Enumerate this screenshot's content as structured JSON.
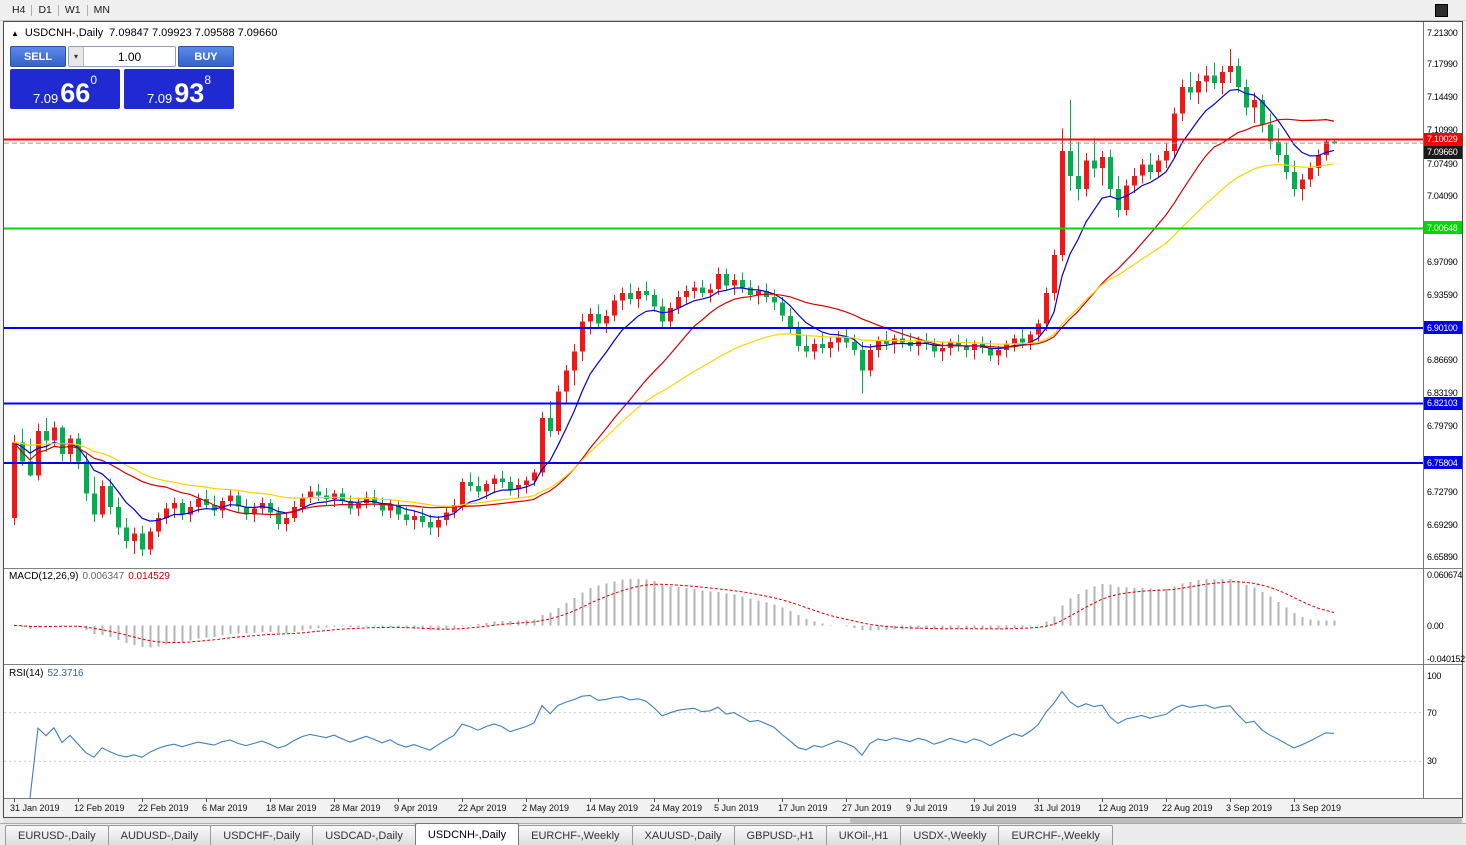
{
  "toolbar": {
    "timeframes": [
      "H4",
      "D1",
      "W1",
      "MN"
    ]
  },
  "chart": {
    "arrow": "▲",
    "title_symbol": "USDCNH-,Daily",
    "title_ohlc": "7.09847 7.09923 7.09588 7.09660"
  },
  "trade_panel": {
    "sell_label": "SELL",
    "buy_label": "BUY",
    "volume": "1.00",
    "dropdown_icon": "▾",
    "sell_price": {
      "small": "7.09",
      "big": "66",
      "sup": "0"
    },
    "buy_price": {
      "small": "7.09",
      "big": "93",
      "sup": "8"
    }
  },
  "price_axis": {
    "ticks": [
      "7.21300",
      "7.17990",
      "7.14490",
      "7.10990",
      "7.07490",
      "7.04090",
      "6.97090",
      "6.93590",
      "6.86690",
      "6.83190",
      "6.79790",
      "6.72790",
      "6.69290",
      "6.65890"
    ]
  },
  "macd_panel": {
    "label": "MACD(12,26,9)",
    "main_value": "0.006347",
    "signal_value": "0.014529",
    "axis_max": "0.060674",
    "axis_zero": "0.00",
    "axis_min": "-0.040152"
  },
  "rsi_panel": {
    "label": "RSI(14)",
    "value": "52.3716",
    "axis": [
      "100",
      "70",
      "30"
    ]
  },
  "date_axis": [
    "31 Jan 2019",
    "12 Feb 2019",
    "22 Feb 2019",
    "6 Mar 2019",
    "18 Mar 2019",
    "28 Mar 2019",
    "9 Apr 2019",
    "22 Apr 2019",
    "2 May 2019",
    "14 May 2019",
    "24 May 2019",
    "5 Jun 2019",
    "17 Jun 2019",
    "27 Jun 2019",
    "9 Jul 2019",
    "19 Jul 2019",
    "31 Jul 2019",
    "12 Aug 2019",
    "22 Aug 2019",
    "3 Sep 2019",
    "13 Sep 2019"
  ],
  "tabs": [
    {
      "label": "EURUSD-,Daily",
      "active": false
    },
    {
      "label": "AUDUSD-,Daily",
      "active": false
    },
    {
      "label": "USDCHF-,Daily",
      "active": false
    },
    {
      "label": "USDCAD-,Daily",
      "active": false
    },
    {
      "label": "USDCNH-,Daily",
      "active": true
    },
    {
      "label": "EURCHF-,Weekly",
      "active": false
    },
    {
      "label": "XAUUSD-,Daily",
      "active": false
    },
    {
      "label": "GBPUSD-,H1",
      "active": false
    },
    {
      "label": "UKOil-,H1",
      "active": false
    },
    {
      "label": "USDX-,Weekly",
      "active": false
    },
    {
      "label": "EURCHF-,Weekly",
      "active": false
    }
  ],
  "chart_data": {
    "type": "candlestick",
    "symbol": "USDCNH-",
    "timeframe": "Daily",
    "last_ohlc": {
      "open": 7.09847,
      "high": 7.09923,
      "low": 7.09588,
      "close": 7.0966
    },
    "y_range": [
      6.6589,
      7.213
    ],
    "style": {
      "up_color": "#f21616",
      "down_color": "#00b050",
      "background": "#ffffff"
    },
    "levels": [
      {
        "price": 7.10029,
        "label": "7.10029",
        "color": "#ff0000"
      },
      {
        "price": 7.00648,
        "label": "7.00648",
        "color": "#00d800"
      },
      {
        "price": 6.901,
        "label": "6.90100",
        "color": "#0000f0"
      },
      {
        "price": 6.82103,
        "label": "6.82103",
        "color": "#0000f0"
      },
      {
        "price": 6.75804,
        "label": "6.75804",
        "color": "#0000f0"
      }
    ],
    "bid_marker": {
      "price": 7.0966,
      "label": "7.09660",
      "box_color": "#1a1a1a"
    },
    "moving_averages": [
      {
        "period": 8,
        "method": "ema",
        "color": "#0000d8"
      },
      {
        "period": 20,
        "method": "sma",
        "color": "#d40000"
      },
      {
        "period": 34,
        "method": "ema",
        "color": "#ffd200"
      }
    ],
    "macd": {
      "fast": 12,
      "slow": 26,
      "signal": 9,
      "current_main": 0.006347,
      "current_signal": 0.014529,
      "hist_color": "#b4b4b4",
      "signal_color": "#e00000",
      "axis": [
        0.060674,
        0,
        -0.040152
      ]
    },
    "rsi": {
      "period": 14,
      "current": 52.3716,
      "color": "#3f7fc1",
      "levels": [
        70,
        30
      ]
    },
    "candles": [
      [
        6.7,
        6.788,
        6.693,
        6.78
      ],
      [
        6.78,
        6.795,
        6.755,
        6.76
      ],
      [
        6.76,
        6.784,
        6.744,
        6.745
      ],
      [
        6.745,
        6.8,
        6.74,
        6.792
      ],
      [
        6.792,
        6.806,
        6.77,
        6.782
      ],
      [
        6.782,
        6.802,
        6.776,
        6.796
      ],
      [
        6.796,
        6.798,
        6.76,
        6.768
      ],
      [
        6.768,
        6.788,
        6.758,
        6.784
      ],
      [
        6.784,
        6.79,
        6.752,
        6.76
      ],
      [
        6.76,
        6.768,
        6.718,
        6.726
      ],
      [
        6.726,
        6.744,
        6.696,
        6.704
      ],
      [
        6.704,
        6.74,
        6.7,
        6.734
      ],
      [
        6.734,
        6.742,
        6.704,
        6.712
      ],
      [
        6.712,
        6.722,
        6.682,
        6.69
      ],
      [
        6.69,
        6.7,
        6.668,
        6.676
      ],
      [
        6.676,
        6.69,
        6.662,
        6.684
      ],
      [
        6.684,
        6.692,
        6.66,
        6.667
      ],
      [
        6.667,
        6.69,
        6.661,
        6.686
      ],
      [
        6.686,
        6.706,
        6.68,
        6.7
      ],
      [
        6.7,
        6.716,
        6.694,
        6.71
      ],
      [
        6.71,
        6.722,
        6.7,
        6.716
      ],
      [
        6.716,
        6.72,
        6.698,
        6.704
      ],
      [
        6.704,
        6.718,
        6.696,
        6.712
      ],
      [
        6.712,
        6.726,
        6.706,
        6.72
      ],
      [
        6.72,
        6.73,
        6.71,
        6.714
      ],
      [
        6.714,
        6.724,
        6.702,
        6.708
      ],
      [
        6.708,
        6.722,
        6.7,
        6.718
      ],
      [
        6.718,
        6.73,
        6.712,
        6.724
      ],
      [
        6.724,
        6.728,
        6.706,
        6.712
      ],
      [
        6.712,
        6.72,
        6.698,
        6.704
      ],
      [
        6.704,
        6.716,
        6.696,
        6.71
      ],
      [
        6.71,
        6.722,
        6.704,
        6.716
      ],
      [
        6.716,
        6.72,
        6.7,
        6.706
      ],
      [
        6.706,
        6.712,
        6.688,
        6.694
      ],
      [
        6.694,
        6.706,
        6.686,
        6.7
      ],
      [
        6.7,
        6.718,
        6.696,
        6.712
      ],
      [
        6.712,
        6.726,
        6.706,
        6.722
      ],
      [
        6.722,
        6.734,
        6.716,
        6.728
      ],
      [
        6.728,
        6.736,
        6.718,
        6.724
      ],
      [
        6.724,
        6.732,
        6.714,
        6.72
      ],
      [
        6.72,
        6.73,
        6.712,
        6.726
      ],
      [
        6.726,
        6.732,
        6.714,
        6.718
      ],
      [
        6.718,
        6.724,
        6.704,
        6.71
      ],
      [
        6.71,
        6.722,
        6.702,
        6.716
      ],
      [
        6.716,
        6.728,
        6.71,
        6.722
      ],
      [
        6.722,
        6.73,
        6.712,
        6.716
      ],
      [
        6.716,
        6.722,
        6.702,
        6.708
      ],
      [
        6.708,
        6.72,
        6.7,
        6.714
      ],
      [
        6.714,
        6.718,
        6.698,
        6.704
      ],
      [
        6.704,
        6.712,
        6.692,
        6.698
      ],
      [
        6.698,
        6.708,
        6.688,
        6.702
      ],
      [
        6.702,
        6.71,
        6.69,
        6.696
      ],
      [
        6.696,
        6.704,
        6.682,
        6.69
      ],
      [
        6.69,
        6.702,
        6.68,
        6.698
      ],
      [
        6.698,
        6.712,
        6.692,
        6.706
      ],
      [
        6.706,
        6.72,
        6.7,
        6.714
      ],
      [
        6.714,
        6.742,
        6.708,
        6.738
      ],
      [
        6.738,
        6.748,
        6.728,
        6.734
      ],
      [
        6.734,
        6.744,
        6.722,
        6.728
      ],
      [
        6.728,
        6.74,
        6.72,
        6.736
      ],
      [
        6.736,
        6.746,
        6.726,
        6.742
      ],
      [
        6.742,
        6.75,
        6.732,
        6.738
      ],
      [
        6.738,
        6.744,
        6.724,
        6.73
      ],
      [
        6.73,
        6.742,
        6.722,
        6.735
      ],
      [
        6.735,
        6.744,
        6.726,
        6.74
      ],
      [
        6.74,
        6.752,
        6.734,
        6.748
      ],
      [
        6.748,
        6.812,
        6.744,
        6.806
      ],
      [
        6.806,
        6.824,
        6.786,
        6.792
      ],
      [
        6.792,
        6.84,
        6.788,
        6.834
      ],
      [
        6.834,
        6.862,
        6.82,
        6.856
      ],
      [
        6.856,
        6.884,
        6.84,
        6.876
      ],
      [
        6.876,
        6.916,
        6.866,
        6.908
      ],
      [
        6.908,
        6.922,
        6.894,
        6.916
      ],
      [
        6.916,
        6.926,
        6.9,
        6.906
      ],
      [
        6.906,
        6.92,
        6.896,
        6.914
      ],
      [
        6.914,
        6.936,
        6.908,
        6.93
      ],
      [
        6.93,
        6.944,
        6.92,
        6.938
      ],
      [
        6.938,
        6.948,
        6.926,
        6.932
      ],
      [
        6.932,
        6.944,
        6.922,
        6.94
      ],
      [
        6.94,
        6.95,
        6.93,
        6.936
      ],
      [
        6.936,
        6.942,
        6.918,
        6.924
      ],
      [
        6.924,
        6.932,
        6.9,
        6.908
      ],
      [
        6.908,
        6.928,
        6.902,
        6.922
      ],
      [
        6.922,
        6.94,
        6.916,
        6.934
      ],
      [
        6.934,
        6.946,
        6.926,
        6.94
      ],
      [
        6.94,
        6.95,
        6.932,
        6.944
      ],
      [
        6.944,
        6.952,
        6.934,
        6.938
      ],
      [
        6.938,
        6.948,
        6.928,
        6.942
      ],
      [
        6.942,
        6.965,
        6.936,
        6.958
      ],
      [
        6.958,
        6.964,
        6.94,
        6.946
      ],
      [
        6.946,
        6.958,
        6.936,
        6.952
      ],
      [
        6.952,
        6.96,
        6.938,
        6.944
      ],
      [
        6.944,
        6.952,
        6.93,
        6.936
      ],
      [
        6.936,
        6.946,
        6.926,
        6.94
      ],
      [
        6.94,
        6.948,
        6.928,
        6.934
      ],
      [
        6.934,
        6.942,
        6.92,
        6.928
      ],
      [
        6.928,
        6.934,
        6.908,
        6.914
      ],
      [
        6.914,
        6.922,
        6.894,
        6.9
      ],
      [
        6.9,
        6.908,
        6.876,
        6.882
      ],
      [
        6.882,
        6.894,
        6.87,
        6.876
      ],
      [
        6.876,
        6.89,
        6.868,
        6.884
      ],
      [
        6.884,
        6.896,
        6.874,
        6.88
      ],
      [
        6.88,
        6.892,
        6.87,
        6.886
      ],
      [
        6.886,
        6.898,
        6.876,
        6.892
      ],
      [
        6.892,
        6.9,
        6.88,
        6.886
      ],
      [
        6.886,
        6.894,
        6.872,
        6.878
      ],
      [
        6.878,
        6.886,
        6.832,
        6.856
      ],
      [
        6.856,
        6.884,
        6.85,
        6.878
      ],
      [
        6.878,
        6.892,
        6.87,
        6.888
      ],
      [
        6.888,
        6.898,
        6.878,
        6.884
      ],
      [
        6.884,
        6.894,
        6.874,
        6.89
      ],
      [
        6.89,
        6.9,
        6.88,
        6.886
      ],
      [
        6.886,
        6.896,
        6.876,
        6.882
      ],
      [
        6.882,
        6.892,
        6.872,
        6.888
      ],
      [
        6.888,
        6.896,
        6.878,
        6.884
      ],
      [
        6.884,
        6.89,
        6.87,
        6.876
      ],
      [
        6.876,
        6.886,
        6.866,
        6.88
      ],
      [
        6.88,
        6.89,
        6.872,
        6.886
      ],
      [
        6.886,
        6.894,
        6.876,
        6.882
      ],
      [
        6.882,
        6.89,
        6.87,
        6.878
      ],
      [
        6.878,
        6.888,
        6.868,
        6.884
      ],
      [
        6.884,
        6.892,
        6.874,
        6.88
      ],
      [
        6.88,
        6.888,
        6.866,
        6.872
      ],
      [
        6.872,
        6.882,
        6.862,
        6.878
      ],
      [
        6.878,
        6.888,
        6.87,
        6.884
      ],
      [
        6.884,
        6.894,
        6.876,
        6.89
      ],
      [
        6.89,
        6.9,
        6.88,
        6.886
      ],
      [
        6.886,
        6.898,
        6.878,
        6.894
      ],
      [
        6.894,
        6.91,
        6.886,
        6.906
      ],
      [
        6.906,
        6.944,
        6.898,
        6.938
      ],
      [
        6.938,
        6.984,
        6.93,
        6.978
      ],
      [
        6.978,
        7.112,
        6.972,
        7.088
      ],
      [
        7.088,
        7.142,
        7.046,
        7.062
      ],
      [
        7.062,
        7.098,
        7.036,
        7.048
      ],
      [
        7.048,
        7.086,
        7.04,
        7.078
      ],
      [
        7.078,
        7.102,
        7.06,
        7.07
      ],
      [
        7.07,
        7.088,
        7.052,
        7.082
      ],
      [
        7.082,
        7.09,
        7.04,
        7.048
      ],
      [
        7.048,
        7.062,
        7.018,
        7.026
      ],
      [
        7.026,
        7.058,
        7.02,
        7.052
      ],
      [
        7.052,
        7.07,
        7.044,
        7.062
      ],
      [
        7.062,
        7.08,
        7.054,
        7.074
      ],
      [
        7.074,
        7.086,
        7.058,
        7.066
      ],
      [
        7.066,
        7.084,
        7.06,
        7.078
      ],
      [
        7.078,
        7.096,
        7.07,
        7.088
      ],
      [
        7.088,
        7.134,
        7.082,
        7.128
      ],
      [
        7.128,
        7.164,
        7.12,
        7.156
      ],
      [
        7.156,
        7.172,
        7.142,
        7.15
      ],
      [
        7.15,
        7.17,
        7.138,
        7.162
      ],
      [
        7.162,
        7.178,
        7.15,
        7.168
      ],
      [
        7.168,
        7.182,
        7.154,
        7.16
      ],
      [
        7.16,
        7.178,
        7.148,
        7.172
      ],
      [
        7.172,
        7.196,
        7.16,
        7.178
      ],
      [
        7.178,
        7.186,
        7.15,
        7.156
      ],
      [
        7.156,
        7.164,
        7.126,
        7.134
      ],
      [
        7.134,
        7.15,
        7.118,
        7.142
      ],
      [
        7.142,
        7.148,
        7.108,
        7.116
      ],
      [
        7.116,
        7.128,
        7.09,
        7.098
      ],
      [
        7.098,
        7.112,
        7.076,
        7.084
      ],
      [
        7.084,
        7.096,
        7.058,
        7.066
      ],
      [
        7.066,
        7.078,
        7.04,
        7.048
      ],
      [
        7.048,
        7.064,
        7.036,
        7.058
      ],
      [
        7.058,
        7.076,
        7.05,
        7.07
      ],
      [
        7.07,
        7.09,
        7.062,
        7.084
      ],
      [
        7.084,
        7.1,
        7.078,
        7.0985
      ],
      [
        7.09847,
        7.09923,
        7.09588,
        7.0966
      ]
    ]
  }
}
